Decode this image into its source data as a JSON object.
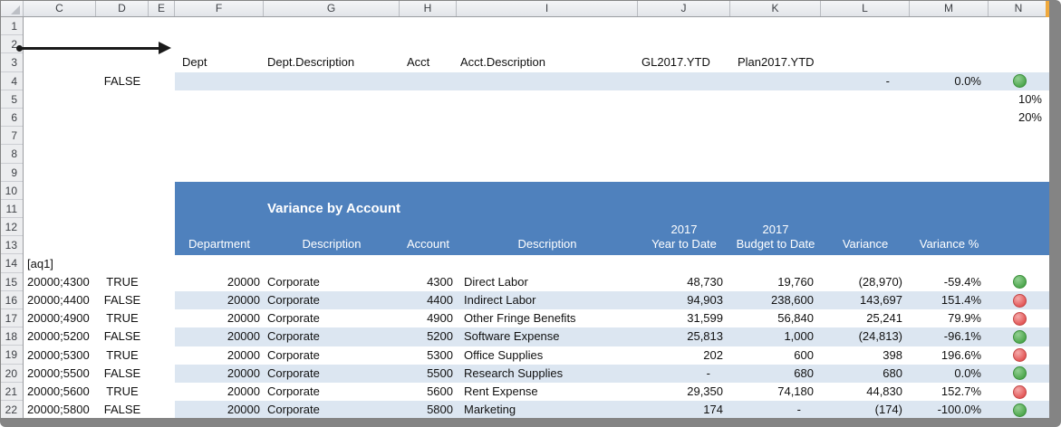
{
  "columns": [
    "C",
    "D",
    "E",
    "F",
    "G",
    "H",
    "I",
    "J",
    "K",
    "L",
    "M",
    "N"
  ],
  "gutter": [
    "1",
    "2",
    "3",
    "4",
    "5",
    "6",
    "7",
    "8",
    "9",
    "10",
    "11",
    "12",
    "13",
    "14",
    "15",
    "16",
    "17",
    "18",
    "19",
    "20",
    "21",
    "22"
  ],
  "field_row": {
    "dept": "Dept",
    "dept_desc": "Dept.Description",
    "acct": "Acct",
    "acct_desc": "Acct.Description",
    "gl": "GL2017.YTD",
    "plan": "Plan2017.YTD"
  },
  "control_row": {
    "flag": "FALSE",
    "variance": "-",
    "variance_pct": "0.0%",
    "kpi": "green"
  },
  "thresholds": {
    "low": "10%",
    "high": "20%"
  },
  "marker": "[aq1]",
  "report": {
    "title": "Variance by Account",
    "headers": {
      "department": "Department",
      "description": "Description",
      "account": "Account",
      "acct_description": "Description",
      "ytd_line1": "2017",
      "ytd_line2": "Year to Date",
      "btd_line1": "2017",
      "btd_line2": "Budget to Date",
      "variance": "Variance",
      "variance_pct": "Variance %"
    },
    "rows": [
      {
        "key": "20000;4300",
        "flag": "TRUE",
        "dept": "20000",
        "dept_desc": "Corporate",
        "acct": "4300",
        "acct_desc": "Direct Labor",
        "ytd": "48,730",
        "btd": "19,760",
        "var": "(28,970)",
        "var_pct": "-59.4%",
        "kpi": "green"
      },
      {
        "key": "20000;4400",
        "flag": "FALSE",
        "dept": "20000",
        "dept_desc": "Corporate",
        "acct": "4400",
        "acct_desc": "Indirect Labor",
        "ytd": "94,903",
        "btd": "238,600",
        "var": "143,697",
        "var_pct": "151.4%",
        "kpi": "red"
      },
      {
        "key": "20000;4900",
        "flag": "TRUE",
        "dept": "20000",
        "dept_desc": "Corporate",
        "acct": "4900",
        "acct_desc": "Other Fringe Benefits",
        "ytd": "31,599",
        "btd": "56,840",
        "var": "25,241",
        "var_pct": "79.9%",
        "kpi": "red"
      },
      {
        "key": "20000;5200",
        "flag": "FALSE",
        "dept": "20000",
        "dept_desc": "Corporate",
        "acct": "5200",
        "acct_desc": "Software Expense",
        "ytd": "25,813",
        "btd": "1,000",
        "var": "(24,813)",
        "var_pct": "-96.1%",
        "kpi": "green"
      },
      {
        "key": "20000;5300",
        "flag": "TRUE",
        "dept": "20000",
        "dept_desc": "Corporate",
        "acct": "5300",
        "acct_desc": "Office Supplies",
        "ytd": "202",
        "btd": "600",
        "var": "398",
        "var_pct": "196.6%",
        "kpi": "red"
      },
      {
        "key": "20000;5500",
        "flag": "FALSE",
        "dept": "20000",
        "dept_desc": "Corporate",
        "acct": "5500",
        "acct_desc": "Research Supplies",
        "ytd": "-",
        "btd": "680",
        "var": "680",
        "var_pct": "0.0%",
        "kpi": "green"
      },
      {
        "key": "20000;5600",
        "flag": "TRUE",
        "dept": "20000",
        "dept_desc": "Corporate",
        "acct": "5600",
        "acct_desc": "Rent Expense",
        "ytd": "29,350",
        "btd": "74,180",
        "var": "44,830",
        "var_pct": "152.7%",
        "kpi": "red"
      },
      {
        "key": "20000;5800",
        "flag": "FALSE",
        "dept": "20000",
        "dept_desc": "Corporate",
        "acct": "5800",
        "acct_desc": "Marketing",
        "ytd": "174",
        "btd": "-",
        "var": "(174)",
        "var_pct": "-100.0%",
        "kpi": "green"
      }
    ]
  },
  "colors": {
    "report_header_blue": "#4F81BD",
    "band_blue": "#DCE6F1",
    "kpi_green": "#4CA64C",
    "kpi_red": "#E25555",
    "column_marker_orange": "#F0A93C",
    "frame_shadow_gray": "#848484"
  }
}
